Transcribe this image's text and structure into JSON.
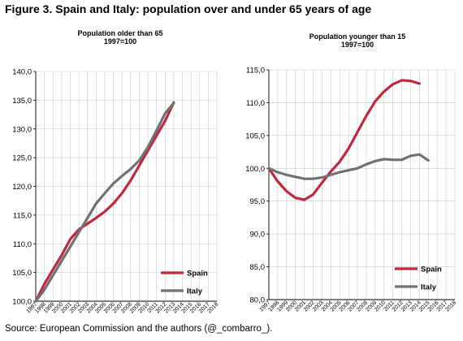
{
  "figure_title": "Figure 3. Spain and Italy: population over and under 65 years of age",
  "source": "Source: European Commission and the authors (@_combarro_).",
  "colors": {
    "spain": "#c0283d",
    "italy": "#717171",
    "grid": "#c8c8c8"
  },
  "chart_data": [
    {
      "type": "line",
      "title": "Population older than 65",
      "subtitle": "1997=100",
      "ylim": [
        100,
        140
      ],
      "yticks": [
        "100,0",
        "105,0",
        "110,0",
        "115,0",
        "120,0",
        "125,0",
        "130,0",
        "135,0",
        "140,0"
      ],
      "x": [
        1997,
        1998,
        1999,
        2000,
        2001,
        2002,
        2003,
        2004,
        2005,
        2006,
        2007,
        2008,
        2009,
        2010,
        2011,
        2012,
        2013,
        2014,
        2015,
        2016,
        2017,
        2018
      ],
      "grid": true,
      "legend_position": "bottom-right",
      "series": [
        {
          "name": "Spain",
          "color": "#c0283d",
          "values": [
            100.0,
            103.0,
            105.5,
            108.0,
            110.8,
            112.5,
            113.5,
            114.5,
            115.6,
            117.0,
            118.8,
            121.0,
            123.6,
            126.2,
            128.8,
            131.4,
            134.6,
            null,
            null,
            null,
            null,
            null
          ]
        },
        {
          "name": "Italy",
          "color": "#717171",
          "values": [
            100.0,
            102.0,
            104.5,
            107.0,
            109.5,
            112.0,
            114.5,
            117.0,
            118.8,
            120.5,
            121.8,
            123.0,
            124.5,
            126.8,
            129.7,
            132.7,
            134.5,
            null,
            null,
            null,
            null,
            null
          ]
        }
      ]
    },
    {
      "type": "line",
      "title": "Population younger than 15",
      "subtitle": "1997=100",
      "ylim": [
        80,
        115
      ],
      "yticks": [
        "80,0",
        "85,0",
        "90,0",
        "95,0",
        "100,0",
        "105,0",
        "110,0",
        "115,0"
      ],
      "x": [
        1997,
        1998,
        1999,
        2000,
        2001,
        2002,
        2003,
        2004,
        2005,
        2006,
        2007,
        2008,
        2009,
        2010,
        2011,
        2012,
        2013,
        2014,
        2015,
        2016,
        2017,
        2018
      ],
      "grid": true,
      "legend_position": "bottom-right",
      "series": [
        {
          "name": "Spain",
          "color": "#c0283d",
          "values": [
            100.0,
            98.0,
            96.5,
            95.5,
            95.2,
            96.0,
            97.8,
            99.5,
            101.0,
            103.0,
            105.5,
            108.0,
            110.2,
            111.7,
            112.8,
            113.4,
            113.3,
            112.9,
            null,
            null,
            null,
            null
          ]
        },
        {
          "name": "Italy",
          "color": "#717171",
          "values": [
            100.0,
            99.4,
            99.0,
            98.7,
            98.4,
            98.4,
            98.6,
            99.0,
            99.4,
            99.7,
            100.0,
            100.6,
            101.1,
            101.4,
            101.3,
            101.3,
            101.9,
            102.1,
            101.2,
            null,
            null,
            null
          ]
        }
      ]
    }
  ]
}
